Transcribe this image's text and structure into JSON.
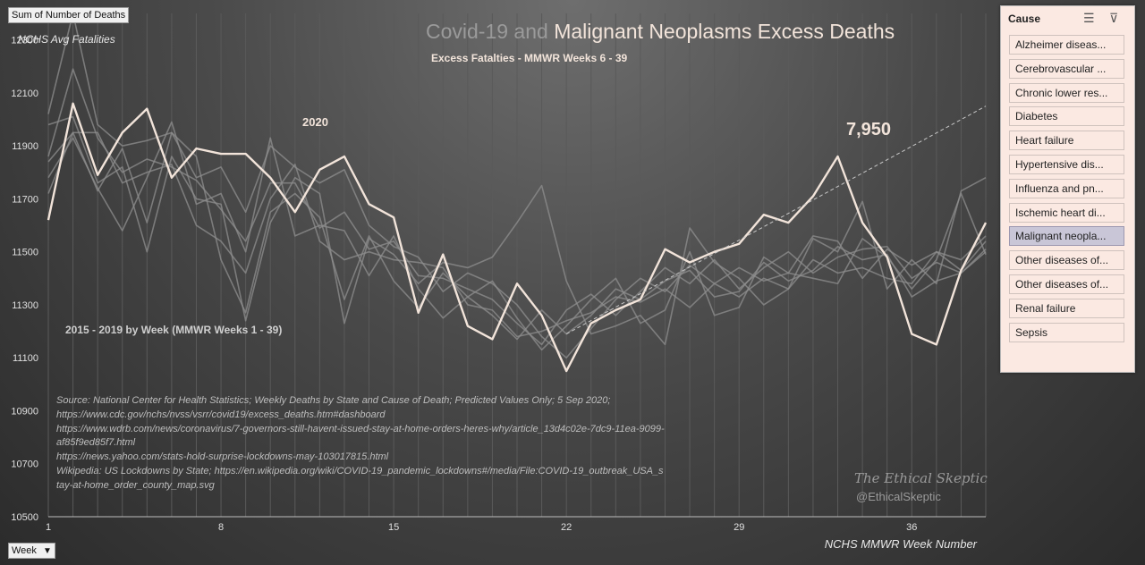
{
  "title": {
    "part1": "Covid-19 and ",
    "part2": "Malignant Neoplasms Excess Deaths"
  },
  "subtitle": "Excess Fatalties - MMWR Weeks 6 - 39",
  "sum_field": "Sum of Number of Deaths",
  "week_field": "Week",
  "y_axis_title": "NCHS Avg Fatalities",
  "x_axis_title": "NCHS MMWR Week Number",
  "annotations": {
    "label_2020": "2020",
    "excess_total": "7,950",
    "historical": "2015 - 2019 by Week (MMWR Weeks 1 - 39)"
  },
  "source_lines": [
    "Source: National Center for Health Statistics; Weekly Deaths by State and Cause of Death; Predicted Values Only; 5 Sep 2020;",
    "https://www.cdc.gov/nchs/nvss/vsrr/covid19/excess_deaths.htm#dashboard",
    "https://www.wdrb.com/news/coronavirus/7-governors-still-havent-issued-stay-at-home-orders-heres-why/article_13d4c02e-7dc9-11ea-9099-af85f9ed85f7.html",
    "https://news.yahoo.com/stats-hold-surprise-lockdowns-may-103017815.html",
    "Wikipedia: US Lockdowns by State; https://en.wikipedia.org/wiki/COVID-19_pandemic_lockdowns#/media/File:COVID-19_outbreak_USA_stay-at-home_order_county_map.svg"
  ],
  "branding": {
    "name": "The Ethical Skeptic",
    "handle": "@EthicalSkeptic"
  },
  "slicer": {
    "title": "Cause",
    "multiselect_icon": "multi-select-icon",
    "clear_icon": "clear-filter-icon",
    "items": [
      {
        "label": "Alzheimer diseas...",
        "selected": false
      },
      {
        "label": "Cerebrovascular ...",
        "selected": false
      },
      {
        "label": "Chronic lower res...",
        "selected": false
      },
      {
        "label": "Diabetes",
        "selected": false
      },
      {
        "label": "Heart failure",
        "selected": false
      },
      {
        "label": "Hypertensive dis...",
        "selected": false
      },
      {
        "label": "Influenza and pn...",
        "selected": false
      },
      {
        "label": "Ischemic heart di...",
        "selected": false
      },
      {
        "label": "Malignant neopla...",
        "selected": true
      },
      {
        "label": "Other diseases of...",
        "selected": false
      },
      {
        "label": "Other diseases of...",
        "selected": false
      },
      {
        "label": "Renal failure",
        "selected": false
      },
      {
        "label": "Sepsis",
        "selected": false
      }
    ]
  },
  "colors": {
    "highlight": "#f2e4da",
    "history": "#8f8f8f",
    "trend": "#c8c8c8",
    "grid": "#5a5a5a"
  },
  "chart_data": {
    "type": "line",
    "xlim": [
      1,
      39
    ],
    "ylim": [
      10500,
      12400
    ],
    "x_ticks": [
      1,
      8,
      15,
      22,
      29,
      36
    ],
    "y_ticks": [
      10500,
      10700,
      10900,
      11100,
      11300,
      11500,
      11700,
      11900,
      12100,
      12300
    ],
    "x": [
      1,
      2,
      3,
      4,
      5,
      6,
      7,
      8,
      9,
      10,
      11,
      12,
      13,
      14,
      15,
      16,
      17,
      18,
      19,
      20,
      21,
      22,
      23,
      24,
      25,
      26,
      27,
      28,
      29,
      30,
      31,
      32,
      33,
      34,
      35,
      36,
      37,
      38,
      39
    ],
    "series": [
      {
        "name": "2020",
        "highlight": true,
        "values": [
          11620,
          12060,
          11790,
          11950,
          12040,
          11780,
          11890,
          11870,
          11870,
          11780,
          11650,
          11810,
          11860,
          11680,
          11630,
          11270,
          11490,
          11220,
          11170,
          11380,
          11260,
          11050,
          11230,
          11280,
          11320,
          11510,
          11460,
          11500,
          11530,
          11640,
          11610,
          11710,
          11860,
          11610,
          11480,
          11190,
          11150,
          11430,
          11610
        ]
      },
      {
        "name": "",
        "values": [
          12020,
          12400,
          11980,
          11900,
          11920,
          11950,
          11780,
          11820,
          11650,
          11900,
          11820,
          11760,
          11810,
          11600,
          11520,
          11480,
          11350,
          11420,
          11380,
          11300,
          11180,
          11100,
          11210,
          11320,
          11400,
          11350,
          11450,
          11380,
          11440,
          11390,
          11420,
          11560,
          11540,
          11400,
          11510,
          11450,
          11500,
          11470,
          11560
        ]
      },
      {
        "name": "",
        "values": [
          11860,
          12190,
          11930,
          11800,
          11850,
          11820,
          11770,
          11660,
          11540,
          11760,
          11760,
          11590,
          11650,
          11510,
          11540,
          11410,
          11400,
          11360,
          11320,
          11230,
          11150,
          11280,
          11340,
          11260,
          11350,
          11440,
          11380,
          11470,
          11360,
          11440,
          11500,
          11420,
          11480,
          11510,
          11520,
          11400,
          11460,
          11420,
          11510
        ]
      },
      {
        "name": "",
        "values": [
          11720,
          11950,
          11950,
          11760,
          11800,
          11830,
          11600,
          11540,
          11420,
          11700,
          11830,
          11540,
          11470,
          11500,
          11470,
          11460,
          11440,
          11300,
          11280,
          11180,
          11200,
          11240,
          11270,
          11330,
          11310,
          11360,
          11290,
          11380,
          11330,
          11400,
          11360,
          11470,
          11420,
          11440,
          11400,
          11380,
          11500,
          11430,
          11540
        ]
      },
      {
        "name": "",
        "values": [
          11980,
          12010,
          11760,
          11820,
          11500,
          11860,
          11700,
          11680,
          11240,
          11610,
          11780,
          11720,
          11230,
          11550,
          11490,
          11380,
          11460,
          11440,
          11480,
          11610,
          11750,
          11390,
          11190,
          11220,
          11260,
          11150,
          11590,
          11460,
          11400,
          11300,
          11360,
          11550,
          11500,
          11690,
          11360,
          11470,
          11380,
          11730,
          11780
        ]
      },
      {
        "name": "",
        "values": [
          11780,
          11930,
          11740,
          11580,
          11780,
          11990,
          11680,
          11720,
          11500,
          11930,
          11560,
          11600,
          11580,
          11410,
          11560,
          11360,
          11250,
          11330,
          11390,
          11250,
          11130,
          11220,
          11320,
          11400,
          11230,
          11280,
          11500,
          11260,
          11290,
          11480,
          11420,
          11400,
          11380,
          11550,
          11480,
          11360,
          11470,
          11720,
          11490
        ]
      },
      {
        "name": "",
        "values": [
          11840,
          11950,
          11730,
          11890,
          11610,
          11950,
          11860,
          11470,
          11270,
          11650,
          11720,
          11630,
          11320,
          11560,
          11390,
          11290,
          11420,
          11330,
          11260,
          11170,
          11280,
          11190,
          11260,
          11360,
          11320,
          11390,
          11430,
          11330,
          11350,
          11460,
          11390,
          11430,
          11520,
          11470,
          11490,
          11330,
          11390,
          11420,
          11500
        ]
      }
    ],
    "trendline": {
      "x": [
        22,
        39
      ],
      "y": [
        11190,
        12050
      ]
    }
  }
}
